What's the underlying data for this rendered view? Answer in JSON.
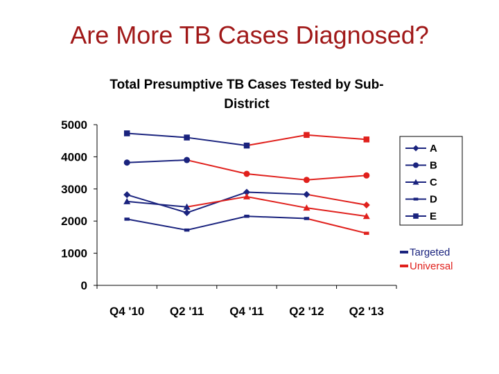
{
  "slide": {
    "title": "Are More TB Cases Diagnosed?"
  },
  "colors": {
    "targeted": "#1a237e",
    "universal": "#e0201c",
    "title": "#a01818"
  },
  "chart_data": {
    "type": "line",
    "title_lines": [
      "Total Presumptive TB Cases Tested by Sub-",
      "District"
    ],
    "xlabel": "",
    "ylabel": "",
    "categories": [
      "Q4 '10",
      "Q2 '11",
      "Q4 '11",
      "Q2 '12",
      "Q2 '13"
    ],
    "ylim": [
      0,
      5000
    ],
    "yticks": [
      0,
      1000,
      2000,
      3000,
      4000,
      5000
    ],
    "grid": false,
    "legend_position": "right",
    "series": [
      {
        "name": "A",
        "marker": "diamond",
        "values": [
          2820,
          2260,
          2900,
          2830,
          2500
        ],
        "cohort": [
          "targeted",
          "targeted",
          "targeted",
          "targeted",
          "universal"
        ]
      },
      {
        "name": "B",
        "marker": "circle",
        "values": [
          3820,
          3900,
          3470,
          3280,
          3420
        ],
        "cohort": [
          "targeted",
          "targeted",
          "universal",
          "universal",
          "universal"
        ]
      },
      {
        "name": "C",
        "marker": "triangle",
        "values": [
          2610,
          2440,
          2760,
          2410,
          2150
        ],
        "cohort": [
          "targeted",
          "targeted",
          "universal",
          "universal",
          "universal"
        ]
      },
      {
        "name": "D",
        "marker": "dash",
        "values": [
          2060,
          1720,
          2150,
          2080,
          1620
        ],
        "cohort": [
          "targeted",
          "targeted",
          "targeted",
          "targeted",
          "universal"
        ]
      },
      {
        "name": "E",
        "marker": "square",
        "values": [
          4730,
          4600,
          4350,
          4680,
          4540
        ],
        "cohort": [
          "targeted",
          "targeted",
          "targeted",
          "universal",
          "universal"
        ]
      }
    ],
    "cohort_legend": [
      {
        "key": "targeted",
        "label": "Targeted"
      },
      {
        "key": "universal",
        "label": "Universal"
      }
    ]
  }
}
